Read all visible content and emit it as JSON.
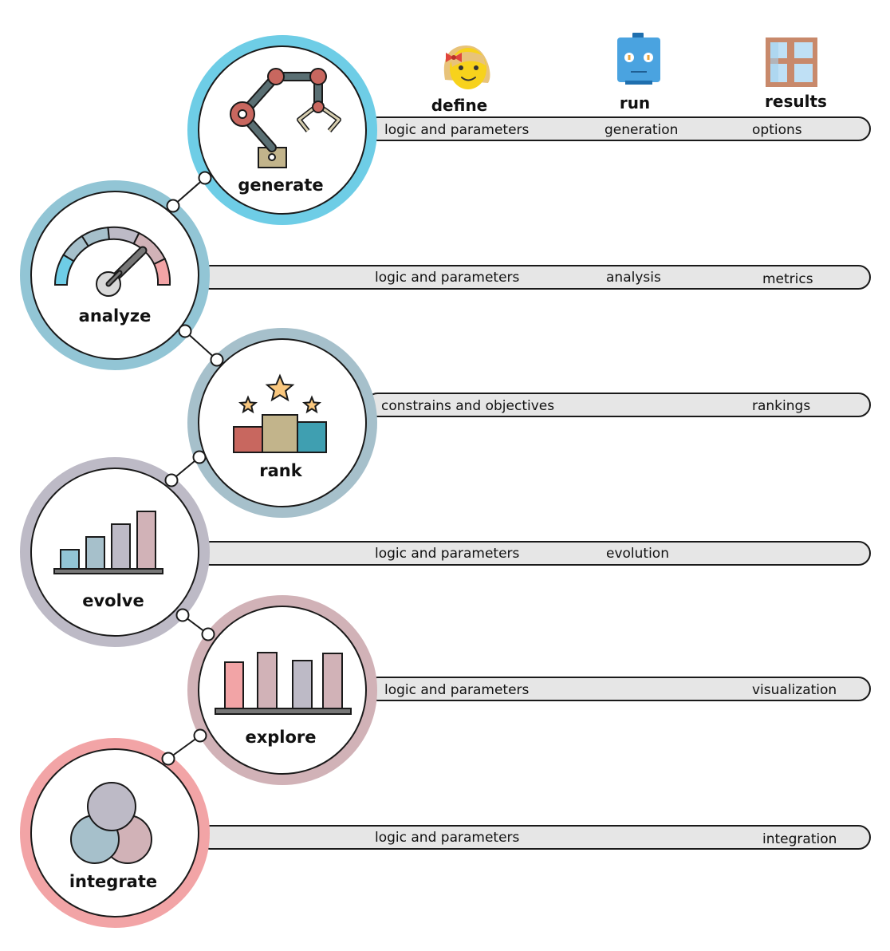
{
  "headers": {
    "define": "define",
    "run": "run",
    "results": "results"
  },
  "stages": {
    "generate": "generate",
    "analyze": "analyze",
    "rank": "rank",
    "evolve": "evolve",
    "explore": "explore",
    "integrate": "integrate"
  },
  "bars": {
    "generate": {
      "define": "logic and parameters",
      "run": "generation",
      "results": "options"
    },
    "analyze": {
      "define": "logic and parameters",
      "run": "analysis",
      "results": "metrics"
    },
    "rank": {
      "define": "constrains and objectives",
      "results": "rankings"
    },
    "evolve": {
      "define": "logic and parameters",
      "run": "evolution"
    },
    "explore": {
      "define": "logic and parameters",
      "results": "visualization"
    },
    "integrate": {
      "define": "logic and parameters",
      "results": "integration"
    }
  },
  "icons": {
    "define": "girl-face-icon",
    "run": "robot-icon",
    "results": "window-icon",
    "generate": "robot-arm-icon",
    "analyze": "gauge-icon",
    "rank": "podium-stars-icon",
    "evolve": "ascending-bars-icon",
    "explore": "bar-chart-icon",
    "integrate": "venn-circles-icon"
  },
  "colors": {
    "generate_ring": "#6ecde6",
    "analyze_ring": "#92c5d5",
    "rank_ring": "#a6c0cb",
    "evolve_ring": "#bdbac6",
    "explore_ring": "#d1b2b7",
    "integrate_ring": "#f2a4a6",
    "bar_fill": "#e6e6e6"
  }
}
